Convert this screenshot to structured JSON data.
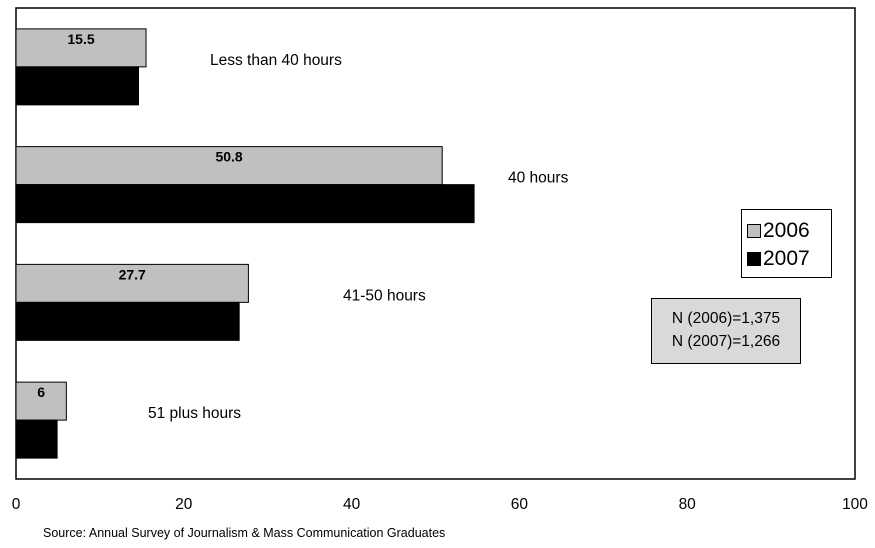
{
  "chart_data": {
    "type": "bar",
    "orientation": "horizontal",
    "categories": [
      "Less than 40 hours",
      "40 hours",
      "41-50 hours",
      "51 plus hours"
    ],
    "series": [
      {
        "name": "2006",
        "values": [
          15.5,
          50.8,
          27.7,
          6
        ],
        "color": "#c0c0c0",
        "labels": [
          "15.5",
          "50.8",
          "27.7",
          "6"
        ]
      },
      {
        "name": "2007",
        "values": [
          14.6,
          54.6,
          26.6,
          4.9
        ],
        "color": "#000000"
      }
    ],
    "xlim": [
      0,
      100
    ],
    "xticks": [
      "0",
      "20",
      "40",
      "60",
      "80",
      "100"
    ],
    "grid": false,
    "legend_position": "right"
  },
  "annotation": {
    "n_2006": "N (2006)=1,375",
    "n_2007": "N (2007)=1,266"
  },
  "source": "Source:  Annual Survey of Journalism & Mass Communication Graduates"
}
